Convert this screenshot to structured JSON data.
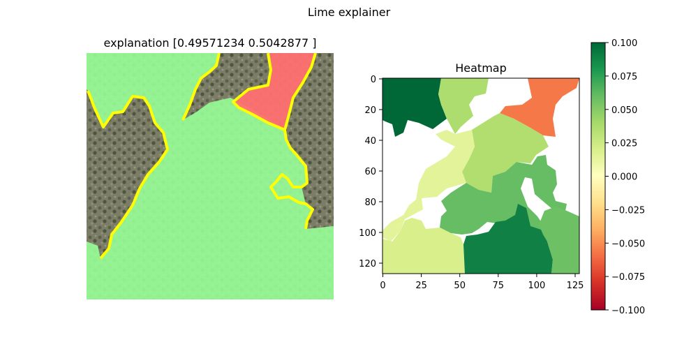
{
  "figure": {
    "suptitle": "Lime explainer"
  },
  "chart_data": [
    {
      "type": "image",
      "title": "explanation [0.49571234 0.5042877 ]",
      "content": "aerial image overlaid with LIME superpixel mask; positive regions tinted green, negative region tinted red, region boundaries outlined in yellow",
      "colors": {
        "positive": "#98ff98",
        "negative": "#ff6f6f",
        "boundary": "#ffff00",
        "background": "#7f7f68"
      }
    },
    {
      "type": "heatmap",
      "title": "Heatmap",
      "xlim": [
        0,
        127
      ],
      "ylim": [
        127,
        0
      ],
      "xticks": [
        0,
        25,
        50,
        75,
        100,
        125
      ],
      "yticks": [
        0,
        20,
        40,
        60,
        80,
        100,
        120
      ],
      "colormap": "RdYlGn",
      "regions": [
        {
          "name": "top-left",
          "value": 0.1
        },
        {
          "name": "top-middle",
          "value": 0.03
        },
        {
          "name": "top-right",
          "value": -0.06
        },
        {
          "name": "center",
          "value": 0.035
        },
        {
          "name": "left-middle",
          "value": 0.015
        },
        {
          "name": "center-lower",
          "value": 0.055
        },
        {
          "name": "right-middle",
          "value": 0.06
        },
        {
          "name": "bottom-left",
          "value": 0.02
        },
        {
          "name": "bottom-center",
          "value": 0.09
        },
        {
          "name": "bottom-right",
          "value": 0.06
        },
        {
          "name": "zero",
          "value": 0.0
        }
      ]
    },
    {
      "type": "colorbar",
      "range": [
        -0.1,
        0.1
      ],
      "ticks": [
        "0.100",
        "0.075",
        "0.050",
        "0.025",
        "0.000",
        "−0.025",
        "−0.050",
        "−0.075",
        "−0.100"
      ]
    }
  ]
}
